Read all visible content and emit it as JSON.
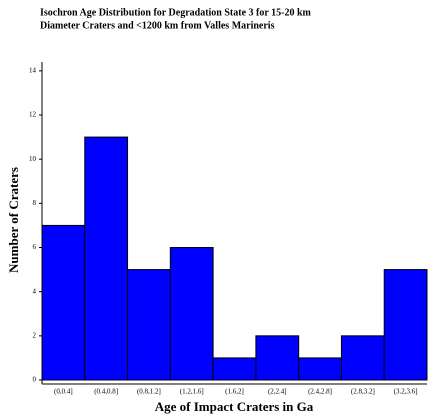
{
  "chart_data": {
    "type": "bar",
    "title": [
      "Isochron Age Distribution for Degradation State 3 for 15-20 km",
      "Diameter Craters and <1200 km from Valles Marineris"
    ],
    "x_label": "Age of Impact Craters in Ga",
    "y_label": "Number of Craters",
    "categories": [
      "(0,0.4]",
      "(0.4,0.8]",
      "(0.8,1.2]",
      "(1.2,1.6]",
      "(1.6,2]",
      "(2,2.4]",
      "(2.4,2.8]",
      "(2.8,3.2]",
      "(3.2,3.6]"
    ],
    "values": [
      7,
      11,
      5,
      6,
      1,
      2,
      1,
      2,
      5
    ],
    "color": "#0000ff",
    "ylim": [
      0,
      14.4
    ],
    "yticks": [
      0,
      2,
      4,
      6,
      8,
      10,
      12,
      14
    ],
    "grid": false
  }
}
